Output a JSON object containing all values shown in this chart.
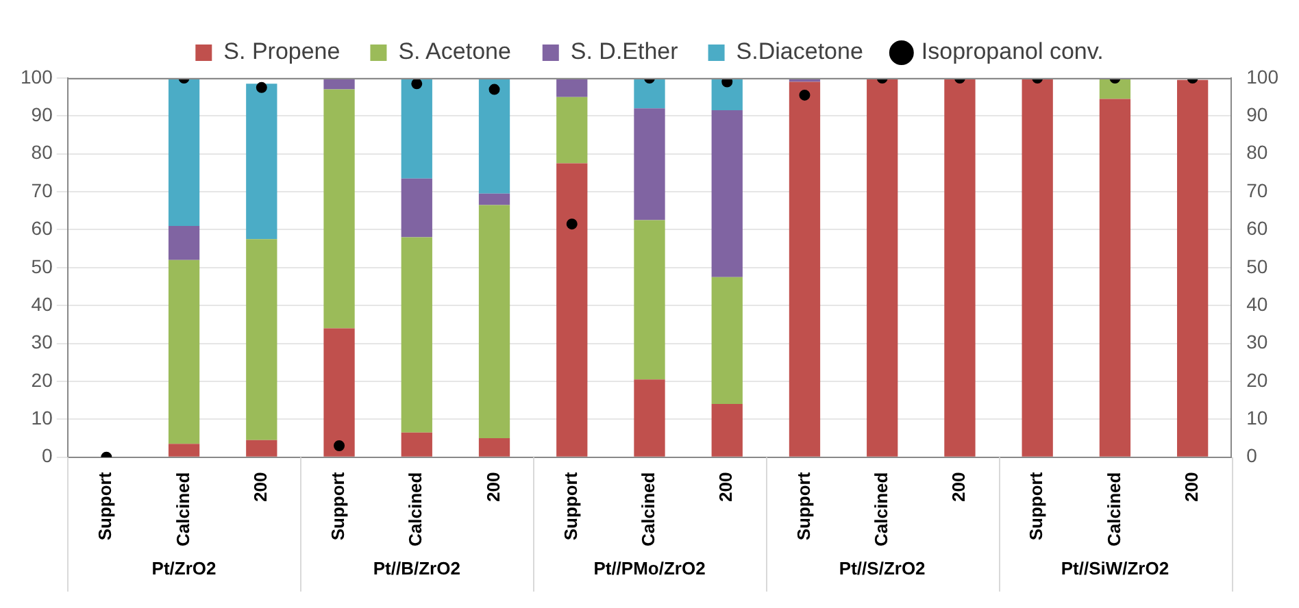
{
  "chart_data": {
    "type": "bar",
    "stacked": true,
    "categories": [
      "Support",
      "Calcined",
      "200",
      "Support",
      "Calcined",
      "200",
      "Support",
      "Calcined",
      "200",
      "Support",
      "Calcined",
      "200",
      "Support",
      "Calcined",
      "200"
    ],
    "annotations": [
      "Pt/ZrO2",
      "Pt//B/ZrO2",
      "Pt//PMo/ZrO2",
      "Pt//S/ZrO2",
      "Pt//SiW/ZrO2"
    ],
    "series": [
      {
        "name": "S. Propene",
        "color": "#c0504d",
        "values": [
          0,
          3.5,
          4.5,
          34,
          6.5,
          5,
          77.5,
          20.5,
          14,
          99,
          100,
          100,
          100,
          94.5,
          99.5
        ]
      },
      {
        "name": "S. Acetone",
        "color": "#9bbb59",
        "values": [
          0,
          48.5,
          53,
          63,
          51.5,
          61.5,
          17.5,
          42,
          33.5,
          0,
          0,
          0,
          0,
          5.5,
          null
        ]
      },
      {
        "name": "S. D.Ether",
        "color": "#8064a2",
        "values": [
          0,
          9,
          0,
          3,
          15.5,
          3,
          5,
          29.5,
          44,
          1,
          0,
          0,
          0,
          0,
          0
        ]
      },
      {
        "name": "S.Diacetone",
        "color": "#4bacc6",
        "values": [
          0,
          39,
          41,
          0,
          26.5,
          30.5,
          0,
          8,
          8.5,
          0,
          0,
          0,
          0,
          0,
          0
        ]
      },
      {
        "name": "Isopropanol conv.",
        "type": "scatter",
        "color": "#000000",
        "values": [
          0,
          100,
          97.5,
          3,
          98.5,
          97,
          61.5,
          100,
          99,
          95.5,
          100,
          100,
          100,
          100,
          100
        ]
      }
    ],
    "ylim": [
      0,
      100
    ],
    "yticks": [
      0,
      10,
      20,
      30,
      40,
      50,
      60,
      70,
      80,
      90,
      100
    ],
    "y2lim": [
      0,
      100
    ],
    "y2ticks": [
      0,
      10,
      20,
      30,
      40,
      50,
      60,
      70,
      80,
      90,
      100
    ],
    "grid": "y",
    "legend": "top",
    "marker": "circle"
  }
}
